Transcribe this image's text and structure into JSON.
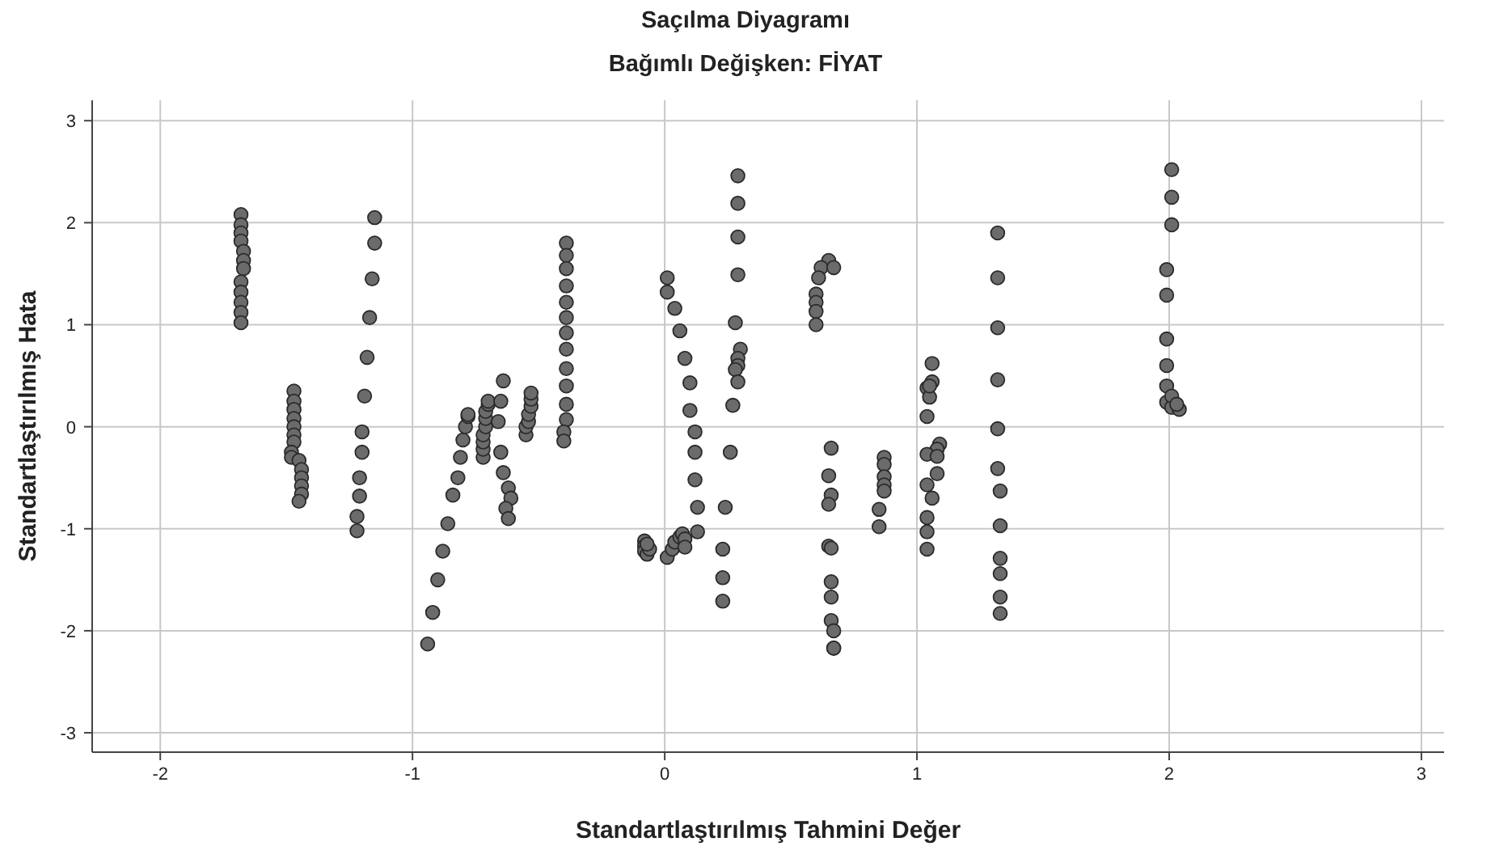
{
  "chart_data": {
    "type": "scatter",
    "title": "Saçılma Diyagramı",
    "subtitle": "Bağımlı Değişken: FİYAT",
    "xlabel": "Standartlaştırılmış Tahmini Değer",
    "ylabel": "Standartlaştırılmış Hata",
    "xlim": [
      -2.27,
      3.09
    ],
    "ylim": [
      -3.19,
      3.2
    ],
    "xticks": [
      -2,
      -1,
      0,
      1,
      2,
      3
    ],
    "yticks": [
      -3,
      -2,
      -1,
      0,
      1,
      2,
      3
    ],
    "grid": true,
    "marker": "circle",
    "series": [
      {
        "color": "#6b6b6b",
        "x": [
          -1.68,
          -1.68,
          -1.68,
          -1.68,
          -1.67,
          -1.67,
          -1.67,
          -1.68,
          -1.68,
          -1.68,
          -1.68,
          -1.68,
          -1.47,
          -1.47,
          -1.47,
          -1.47,
          -1.47,
          -1.47,
          -1.47,
          -1.48,
          -1.48,
          -1.45,
          -1.44,
          -1.44,
          -1.44,
          -1.44,
          -1.45,
          -1.15,
          -1.15,
          -1.16,
          -1.17,
          -1.18,
          -1.19,
          -1.2,
          -1.2,
          -1.21,
          -1.21,
          -1.22,
          -1.22,
          -0.94,
          -0.92,
          -0.9,
          -0.88,
          -0.86,
          -0.84,
          -0.82,
          -0.81,
          -0.8,
          -0.79,
          -0.78,
          -0.78,
          -0.72,
          -0.72,
          -0.72,
          -0.72,
          -0.71,
          -0.71,
          -0.71,
          -0.7,
          -0.7,
          -0.64,
          -0.65,
          -0.66,
          -0.65,
          -0.64,
          -0.62,
          -0.61,
          -0.63,
          -0.62,
          -0.55,
          -0.55,
          -0.54,
          -0.54,
          -0.53,
          -0.53,
          -0.53,
          -0.39,
          -0.39,
          -0.39,
          -0.39,
          -0.39,
          -0.39,
          -0.39,
          -0.39,
          -0.39,
          -0.39,
          -0.39,
          -0.39,
          -0.4,
          -0.4,
          -0.08,
          -0.08,
          -0.08,
          -0.07,
          -0.06,
          -0.07,
          0.01,
          0.03,
          0.04,
          0.06,
          0.07,
          0.08,
          0.08,
          0.01,
          0.01,
          0.04,
          0.06,
          0.08,
          0.1,
          0.1,
          0.12,
          0.12,
          0.12,
          0.13,
          0.13,
          0.29,
          0.29,
          0.29,
          0.29,
          0.28,
          0.3,
          0.29,
          0.29,
          0.28,
          0.29,
          0.27,
          0.26,
          0.24,
          0.23,
          0.23,
          0.23,
          0.65,
          0.62,
          0.67,
          0.61,
          0.6,
          0.6,
          0.6,
          0.6,
          0.66,
          0.65,
          0.66,
          0.65,
          0.65,
          0.66,
          0.66,
          0.66,
          0.66,
          0.67,
          0.67,
          0.67,
          0.87,
          0.87,
          0.87,
          0.87,
          0.87,
          0.85,
          0.85,
          1.06,
          1.06,
          1.04,
          1.05,
          1.04,
          1.09,
          1.08,
          1.04,
          1.08,
          1.08,
          1.04,
          1.06,
          1.04,
          1.04,
          1.04,
          1.05,
          1.32,
          1.32,
          1.32,
          1.32,
          1.32,
          1.32,
          1.33,
          1.33,
          1.33,
          1.33,
          1.33,
          1.33,
          2.01,
          2.01,
          2.01,
          1.99,
          1.99,
          1.99,
          1.99,
          1.99,
          1.99,
          2.01,
          2.04,
          2.01,
          2.03
        ],
        "values": [
          2.08,
          1.98,
          1.9,
          1.82,
          1.72,
          1.63,
          1.55,
          1.42,
          1.32,
          1.22,
          1.12,
          1.02,
          0.35,
          0.25,
          0.17,
          0.08,
          0,
          -0.08,
          -0.15,
          -0.25,
          -0.3,
          -0.33,
          -0.42,
          -0.5,
          -0.58,
          -0.66,
          -0.73,
          2.05,
          1.8,
          1.45,
          1.07,
          0.68,
          0.3,
          -0.05,
          -0.25,
          -0.5,
          -0.68,
          -0.88,
          -1.02,
          -2.13,
          -1.82,
          -1.5,
          -1.22,
          -0.95,
          -0.67,
          -0.5,
          -0.3,
          -0.13,
          0,
          0.1,
          0.12,
          -0.3,
          -0.22,
          -0.15,
          -0.08,
          0,
          0.08,
          0.15,
          0.22,
          0.25,
          0.45,
          0.25,
          0.05,
          -0.25,
          -0.45,
          -0.6,
          -0.7,
          -0.8,
          -0.9,
          -0.08,
          0,
          0.05,
          0.12,
          0.2,
          0.27,
          0.33,
          1.8,
          1.68,
          1.55,
          1.38,
          1.22,
          1.07,
          0.92,
          0.76,
          0.57,
          0.4,
          0.22,
          0.07,
          -0.05,
          -0.14,
          -1.12,
          -1.17,
          -1.22,
          -1.25,
          -1.2,
          -1.15,
          -1.28,
          -1.2,
          -1.13,
          -1.08,
          -1.05,
          -1.1,
          -1.18,
          1.46,
          1.32,
          1.16,
          0.94,
          0.67,
          0.43,
          0.16,
          -0.05,
          -0.25,
          -0.52,
          -0.79,
          -1.03,
          2.46,
          2.19,
          1.86,
          1.49,
          1.02,
          0.76,
          0.67,
          0.6,
          0.56,
          0.44,
          0.21,
          -0.25,
          -0.79,
          -1.2,
          -1.48,
          -1.71,
          1.63,
          1.56,
          1.56,
          1.46,
          1.3,
          1.22,
          1.13,
          1.0,
          -0.21,
          -0.48,
          -0.67,
          -0.76,
          -1.17,
          -1.19,
          -1.52,
          -1.67,
          -1.9,
          -2.0,
          -2.17,
          -2.17,
          -0.3,
          -0.37,
          -0.49,
          -0.57,
          -0.63,
          -0.81,
          -0.98,
          0.62,
          0.44,
          0.38,
          0.29,
          0.1,
          -0.17,
          -0.22,
          -0.27,
          -0.29,
          -0.46,
          -0.57,
          -0.7,
          -0.89,
          -1.03,
          -1.2,
          0.4,
          1.9,
          1.46,
          0.97,
          0.46,
          -0.02,
          -0.41,
          -0.63,
          -0.97,
          -1.29,
          -1.44,
          -1.67,
          -1.83,
          2.52,
          2.25,
          1.98,
          1.54,
          1.29,
          0.86,
          0.6,
          0.4,
          0.24,
          0.19,
          0.17,
          0.3,
          0.22
        ]
      }
    ]
  }
}
